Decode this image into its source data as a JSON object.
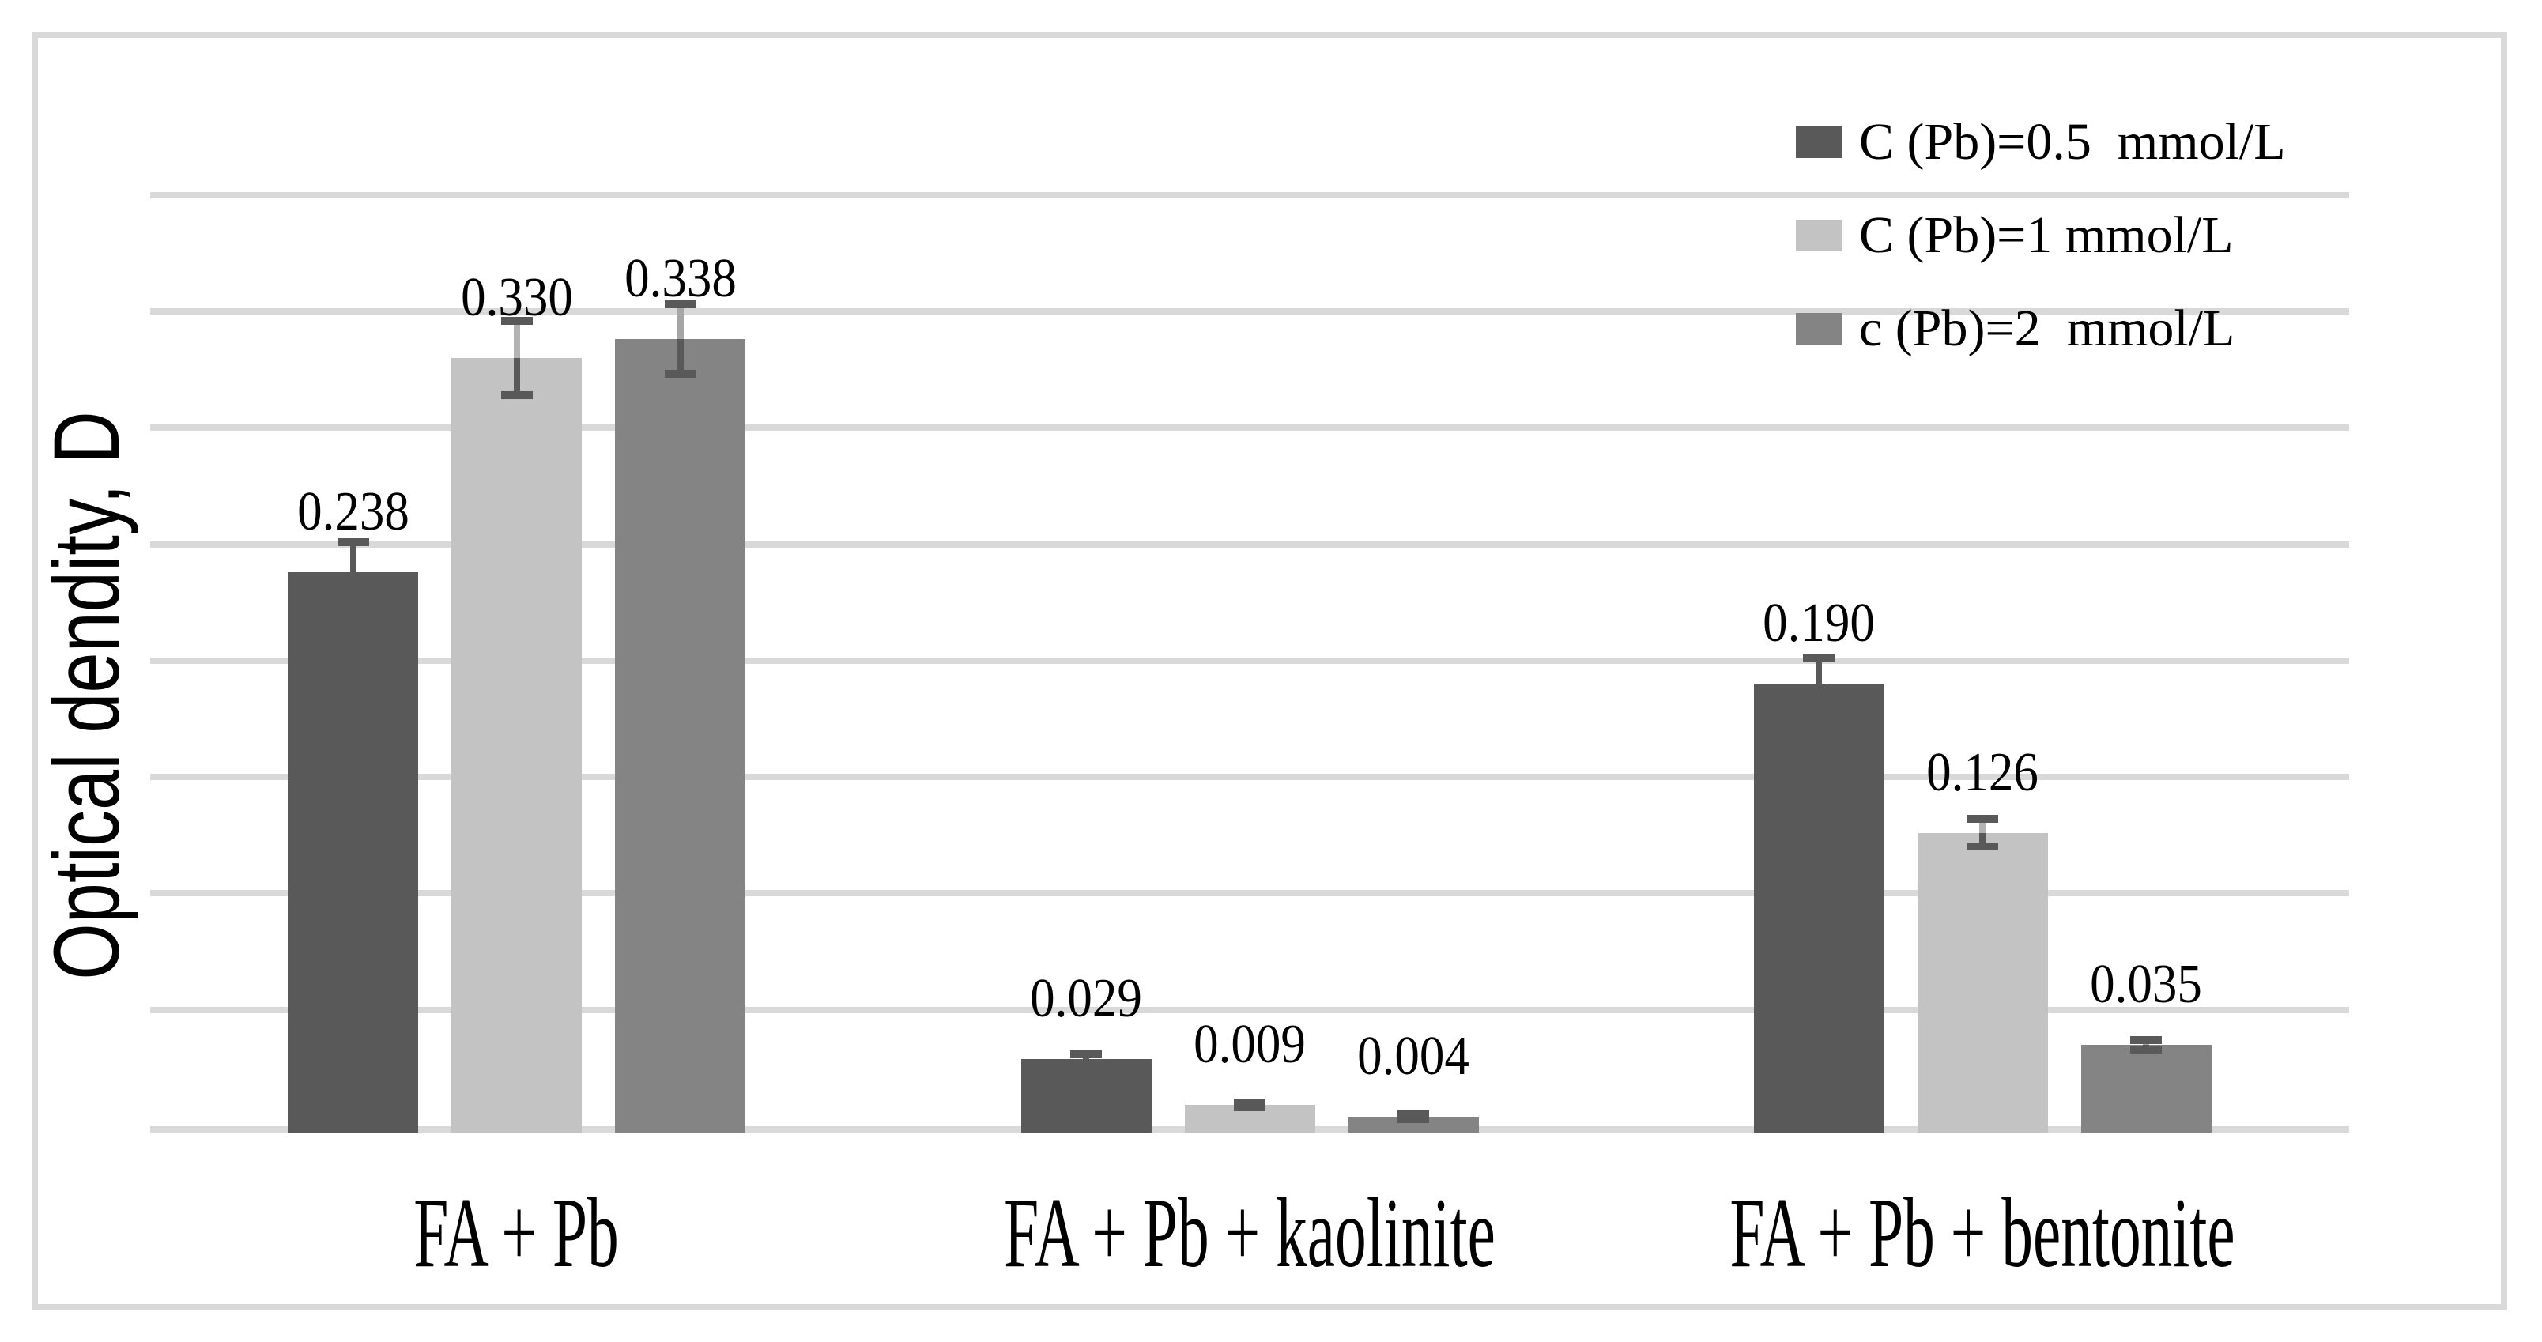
{
  "figure": {
    "background": "#ffffff",
    "frame_color": "#d9d9d9"
  },
  "chart_data": {
    "type": "bar",
    "title": "",
    "xlabel": "",
    "ylabel": "Optical dendity, D",
    "categories": [
      "FA + Pb",
      "FA + Pb + kaolinite",
      "FA + Pb + bentonite"
    ],
    "series": [
      {
        "name": "C (Pb)=0.5  mmol/L",
        "color": "#595959",
        "whisker_color": "#595959",
        "values": [
          0.238,
          0.029,
          0.19
        ],
        "errors": [
          0.013,
          0.002,
          0.011
        ],
        "labels": [
          "0.238",
          "0.029",
          "0.190"
        ]
      },
      {
        "name": "C (Pb)=1 mmol/L",
        "color": "#c3c3c3",
        "whisker_color": "#b3b3b3",
        "values": [
          0.33,
          0.009,
          0.126
        ],
        "errors": [
          0.016,
          0.001,
          0.006
        ],
        "labels": [
          "0.330",
          "0.009",
          "0.126"
        ]
      },
      {
        "name": "c (Pb)=2  mmol/L",
        "color": "#848484",
        "whisker_color": "#a6a6a6",
        "values": [
          0.338,
          0.004,
          0.035
        ],
        "errors": [
          0.015,
          0.001,
          0.002
        ],
        "labels": [
          "0.338",
          "0.004",
          "0.035"
        ]
      }
    ],
    "ylim": [
      0,
      0.4
    ],
    "gridline_step": 0.05,
    "grid": true,
    "gridline_color": "#d9d9d9",
    "axis_line_color": "#d9d9d9",
    "error_cap_color": "#595959",
    "data_label_color": "#000000",
    "legend_position": "top-right"
  }
}
